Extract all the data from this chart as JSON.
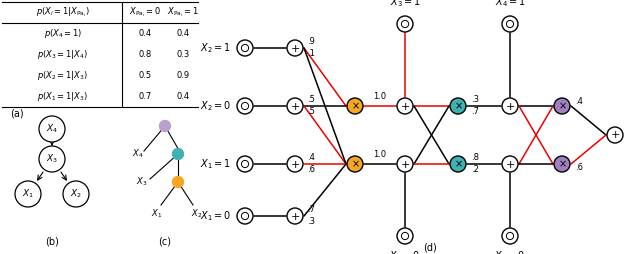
{
  "colors": {
    "orange": "#F5A623",
    "teal": "#40B0B0",
    "purple": "#A080C0",
    "light_purple": "#B8A0D0",
    "red": "#EE0000",
    "black": "#000000",
    "white": "#FFFFFF"
  },
  "table_rows": [
    [
      "p(X_4=1)",
      "0.4",
      "0.4"
    ],
    [
      "p(X_3=1|X_4)",
      "0.8",
      "0.3"
    ],
    [
      "p(X_2=1|X_3)",
      "0.5",
      "0.9"
    ],
    [
      "p(X_1=1|X_3)",
      "0.7",
      "0.4"
    ]
  ]
}
